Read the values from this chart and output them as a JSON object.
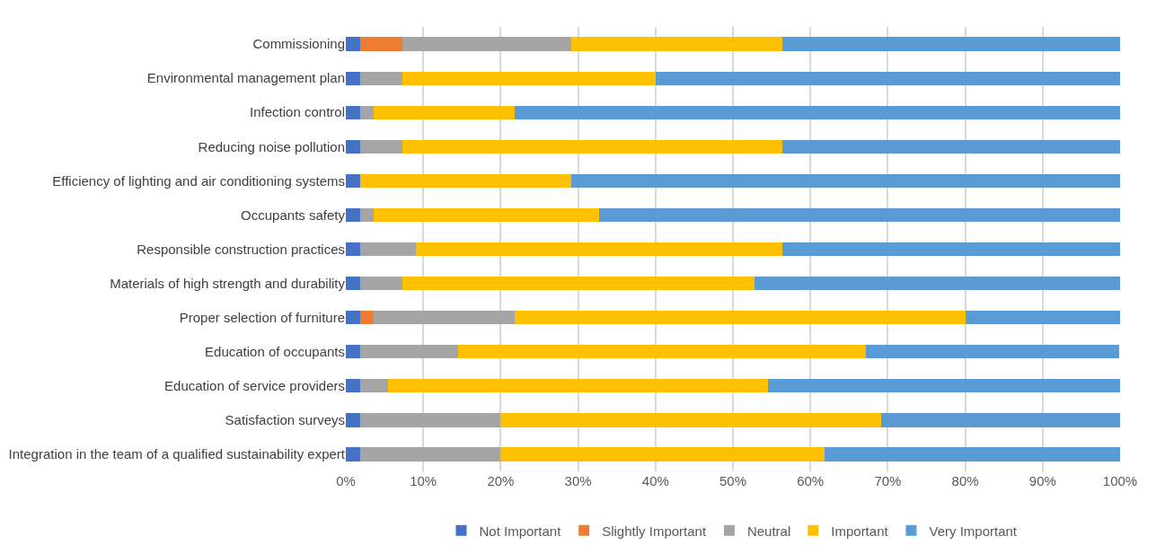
{
  "chart_data": {
    "type": "bar",
    "orientation": "horizontal",
    "stacked": true,
    "categories": [
      "Commissioning",
      "Environmental management plan",
      "Infection control",
      "Reducing noise pollution",
      "Efficiency of lighting and air conditioning systems",
      "Occupants safety",
      "Responsible construction practices",
      "Materials of high strength and durability",
      "Proper selection of furniture",
      "Education of occupants",
      "Education of service providers",
      "Satisfaction surveys",
      "Integration in the team of a qualified sustainability expert"
    ],
    "series": [
      {
        "name": "Not Important",
        "color": "#4472c4",
        "values": [
          1.8,
          1.8,
          1.8,
          1.8,
          1.8,
          1.8,
          1.8,
          1.8,
          1.8,
          1.8,
          1.8,
          1.8,
          1.8
        ]
      },
      {
        "name": "Slightly Important",
        "color": "#ed7d31",
        "values": [
          5.5,
          0,
          0,
          0,
          0,
          0,
          0,
          0,
          1.8,
          0,
          0,
          0,
          0
        ]
      },
      {
        "name": "Neutral",
        "color": "#a5a5a5",
        "values": [
          21.8,
          5.5,
          1.8,
          5.5,
          0,
          1.8,
          7.3,
          5.5,
          18.2,
          12.7,
          3.6,
          18.2,
          18.2
        ]
      },
      {
        "name": "Important",
        "color": "#ffc000",
        "values": [
          27.3,
          32.7,
          18.2,
          49.1,
          27.3,
          29.1,
          47.3,
          45.5,
          58.2,
          52.7,
          49.1,
          49.1,
          41.8
        ]
      },
      {
        "name": "Very Important",
        "color": "#5b9bd5",
        "values": [
          43.6,
          60,
          78.2,
          43.6,
          70.9,
          67.3,
          43.6,
          47.3,
          20,
          32.7,
          45.5,
          30.9,
          38.2
        ]
      }
    ],
    "xlim": [
      0,
      100
    ],
    "xticks": [
      {
        "value": 0,
        "label": "0%"
      },
      {
        "value": 10,
        "label": "10%"
      },
      {
        "value": 20,
        "label": "20%"
      },
      {
        "value": 30,
        "label": "30%"
      },
      {
        "value": 40,
        "label": "40%"
      },
      {
        "value": 50,
        "label": "50%"
      },
      {
        "value": 60,
        "label": "60%"
      },
      {
        "value": 70,
        "label": "70%"
      },
      {
        "value": 80,
        "label": "80%"
      },
      {
        "value": 90,
        "label": "90%"
      },
      {
        "value": 100,
        "label": "100%"
      }
    ],
    "grid": "x",
    "legend": "bottom"
  }
}
